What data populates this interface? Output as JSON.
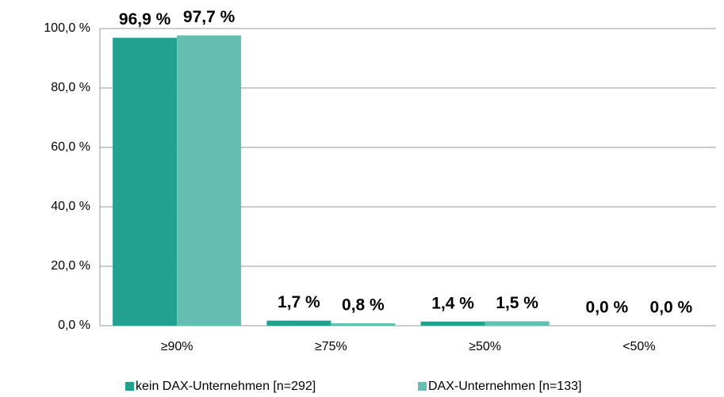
{
  "chart_data": {
    "type": "bar",
    "categories": [
      "≥90%",
      "≥75%",
      "≥50%",
      "<50%"
    ],
    "series": [
      {
        "name": "kein DAX-Unternehmen [n=292]",
        "color": "#22a090",
        "values": [
          96.9,
          1.7,
          1.4,
          0.0
        ],
        "value_labels": [
          "96,9 %",
          "1,7 %",
          "1,4 %",
          "0,0 %"
        ]
      },
      {
        "name": "DAX-Unternehmen [n=133]",
        "color": "#66bdb2",
        "values": [
          97.7,
          0.8,
          1.5,
          0.0
        ],
        "value_labels": [
          "97,7 %",
          "0,8 %",
          "1,5 %",
          "0,0 %"
        ]
      }
    ],
    "ylim": [
      0,
      100
    ],
    "yticks": [
      {
        "value": 0,
        "label": "0,0 %"
      },
      {
        "value": 20,
        "label": "20,0 %"
      },
      {
        "value": 40,
        "label": "40,0 %"
      },
      {
        "value": 60,
        "label": "60,0 %"
      },
      {
        "value": 80,
        "label": "80,0 %"
      },
      {
        "value": 100,
        "label": "100,0 %"
      }
    ],
    "grid": true,
    "legend": "bottom"
  }
}
